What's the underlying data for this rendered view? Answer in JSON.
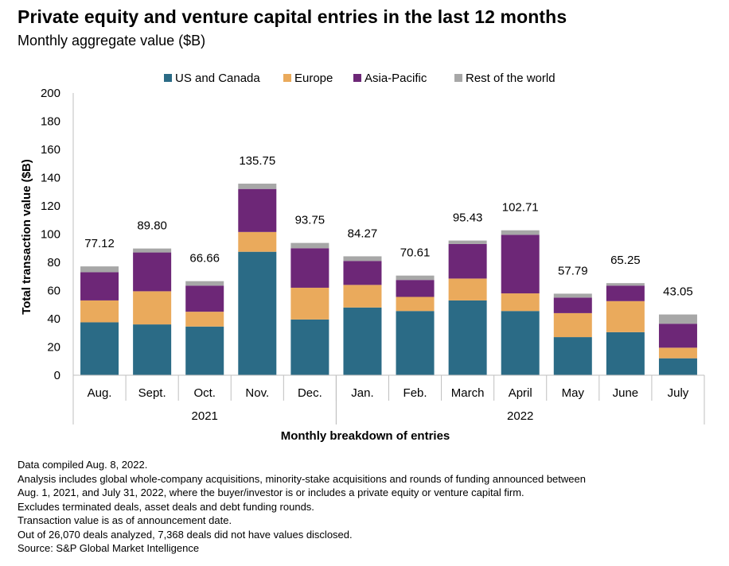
{
  "title": "Private equity and venture capital entries in the last 12 months",
  "subtitle": "Monthly aggregate value ($B)",
  "chart_data": {
    "type": "bar",
    "stacked": true,
    "categories": [
      "Aug.",
      "Sept.",
      "Oct.",
      "Nov.",
      "Dec.",
      "Jan.",
      "Feb.",
      "March",
      "April",
      "May",
      "June",
      "July"
    ],
    "year_groups": [
      {
        "label": "2021",
        "start": 0,
        "end": 4
      },
      {
        "label": "2022",
        "start": 5,
        "end": 11
      }
    ],
    "series": [
      {
        "name": "US and Canada",
        "color": "#2b6b86",
        "values": [
          37.5,
          36,
          34.5,
          87.5,
          39.5,
          48,
          45.5,
          53,
          45.5,
          27,
          30.5,
          12
        ]
      },
      {
        "name": "Europe",
        "color": "#eaaa5c",
        "values": [
          15.5,
          23.5,
          10.5,
          14,
          22.5,
          16,
          10,
          15.5,
          12.5,
          17,
          22,
          7.5
        ]
      },
      {
        "name": "Asia-Pacific",
        "color": "#6d2777",
        "values": [
          20,
          27.5,
          18.5,
          30.5,
          28,
          17,
          12,
          24.5,
          41.5,
          11,
          11,
          17
        ]
      },
      {
        "name": "Rest of the world",
        "color": "#a7a7a7",
        "values": [
          4.12,
          2.8,
          3.16,
          3.75,
          3.75,
          3.27,
          3.11,
          2.43,
          3.21,
          2.79,
          1.75,
          6.55
        ]
      }
    ],
    "totals": [
      77.12,
      89.8,
      66.66,
      135.75,
      93.75,
      84.27,
      70.61,
      95.43,
      102.71,
      57.79,
      65.25,
      43.05
    ],
    "total_labels": [
      "77.12",
      "89.80",
      "66.66",
      "135.75",
      "93.75",
      "84.27",
      "70.61",
      "95.43",
      "102.71",
      "57.79",
      "65.25",
      "43.05"
    ],
    "ylim": [
      0,
      200
    ],
    "yticks": [
      0,
      20,
      40,
      60,
      80,
      100,
      120,
      140,
      160,
      180,
      200
    ],
    "ylabel": "Total transaction value ($B)",
    "xlabel": "Monthly breakdown of entries",
    "legend_position": "top",
    "grid": false
  },
  "notes": [
    "Data compiled Aug. 8, 2022.",
    "Analysis includes global whole-company acquisitions, minority-stake acquisitions and rounds of funding announced between",
    "Aug. 1, 2021, and July 31, 2022, where the buyer/investor is or includes a private equity or venture capital firm.",
    "Excludes terminated deals, asset deals and debt funding rounds.",
    "Transaction value is as of announcement date.",
    "Out of 26,070 deals analyzed, 7,368 deals did not have values disclosed.",
    "Source: S&P Global Market Intelligence"
  ]
}
